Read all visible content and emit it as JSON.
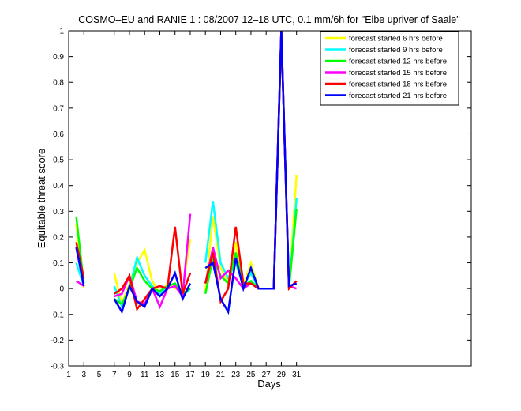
{
  "chart_data": {
    "type": "line",
    "title": "COSMO–EU and RANIE 1 : 08/2007 12–18 UTC, 0.1 mm/6h for \"Elbe upriver of Saale\"",
    "xlabel": "Days",
    "ylabel": "Equitable threat score",
    "xlim": [
      1,
      54
    ],
    "ylim": [
      -0.3,
      1
    ],
    "xticks": [
      1,
      3,
      5,
      7,
      9,
      11,
      13,
      15,
      17,
      19,
      21,
      23,
      25,
      27,
      29,
      31
    ],
    "xtick_labels": [
      "1",
      "3",
      "5",
      "7",
      "9",
      "11",
      "13",
      "15",
      "17",
      "19",
      "21",
      "23",
      "25",
      "27",
      "29",
      "31"
    ],
    "yticks": [
      -0.3,
      -0.2,
      -0.1,
      0,
      0.1,
      0.2,
      0.3,
      0.4,
      0.5,
      0.6,
      0.7,
      0.8,
      0.9,
      1
    ],
    "ytick_labels": [
      "-0.3",
      "-0.2",
      "-0.1",
      "0",
      "0.1",
      "0.2",
      "0.3",
      "0.4",
      "0.5",
      "0.6",
      "0.7",
      "0.8",
      "0.9",
      "1"
    ],
    "grid": false,
    "legend_position": "top-right",
    "x": [
      1,
      2,
      3,
      4,
      5,
      6,
      7,
      8,
      9,
      10,
      11,
      12,
      13,
      14,
      15,
      16,
      17,
      18,
      19,
      20,
      21,
      22,
      23,
      24,
      25,
      26,
      27,
      28,
      29,
      30,
      31
    ],
    "series": [
      {
        "name": "forecast started 6 hrs before",
        "color": "#ffff00",
        "values": [
          null,
          0.25,
          0.0,
          null,
          null,
          null,
          0.06,
          -0.06,
          0.02,
          0.1,
          0.15,
          0.03,
          -0.02,
          0.02,
          0.0,
          0.0,
          0.19,
          null,
          -0.01,
          0.28,
          0.08,
          0.02,
          0.18,
          0.01,
          0.1,
          0.0,
          0.0,
          0.0,
          1.0,
          0.01,
          0.44
        ]
      },
      {
        "name": "forecast started 9 hrs before",
        "color": "#00ffff",
        "values": [
          null,
          0.1,
          0.01,
          null,
          null,
          null,
          0.01,
          -0.07,
          0.0,
          0.12,
          0.05,
          0.01,
          -0.02,
          0.01,
          0.02,
          -0.03,
          0.0,
          null,
          0.1,
          0.34,
          0.1,
          0.04,
          0.1,
          0.01,
          0.06,
          0.0,
          0.0,
          0.0,
          1.0,
          0.0,
          0.35
        ]
      },
      {
        "name": "forecast started 12 hrs before",
        "color": "#00ff00",
        "values": [
          null,
          0.28,
          0.02,
          null,
          null,
          null,
          -0.04,
          -0.06,
          0.0,
          0.08,
          0.03,
          0.0,
          -0.01,
          0.01,
          0.02,
          -0.02,
          0.0,
          null,
          -0.02,
          0.12,
          0.05,
          0.02,
          0.14,
          0.01,
          0.03,
          0.0,
          0.0,
          0.0,
          1.0,
          0.0,
          0.31
        ]
      },
      {
        "name": "forecast started 15 hrs before",
        "color": "#ff00ff",
        "values": [
          null,
          0.03,
          0.01,
          null,
          null,
          null,
          -0.03,
          -0.02,
          0.05,
          -0.05,
          -0.06,
          0.0,
          -0.07,
          0.0,
          0.01,
          -0.03,
          0.29,
          null,
          0.02,
          0.16,
          0.04,
          0.07,
          0.04,
          0.0,
          0.02,
          0.0,
          0.0,
          0.0,
          1.0,
          0.01,
          0.0
        ]
      },
      {
        "name": "forecast started 18 hrs before",
        "color": "#ff0000",
        "values": [
          null,
          0.18,
          0.04,
          null,
          null,
          null,
          -0.02,
          0.0,
          0.05,
          -0.08,
          -0.04,
          0.0,
          0.01,
          0.0,
          0.24,
          -0.02,
          0.06,
          null,
          0.02,
          0.14,
          -0.05,
          0.0,
          0.24,
          0.02,
          0.02,
          0.0,
          0.0,
          0.0,
          1.0,
          0.0,
          0.03
        ]
      },
      {
        "name": "forecast started 21 hrs before",
        "color": "#0000ff",
        "values": [
          null,
          0.16,
          0.01,
          null,
          null,
          null,
          -0.04,
          -0.09,
          0.01,
          -0.05,
          -0.07,
          0.0,
          -0.03,
          0.0,
          0.06,
          -0.04,
          0.02,
          null,
          0.08,
          0.1,
          -0.04,
          -0.09,
          0.12,
          0.0,
          0.08,
          0.0,
          0.0,
          0.0,
          1.0,
          0.01,
          0.02
        ]
      }
    ]
  }
}
